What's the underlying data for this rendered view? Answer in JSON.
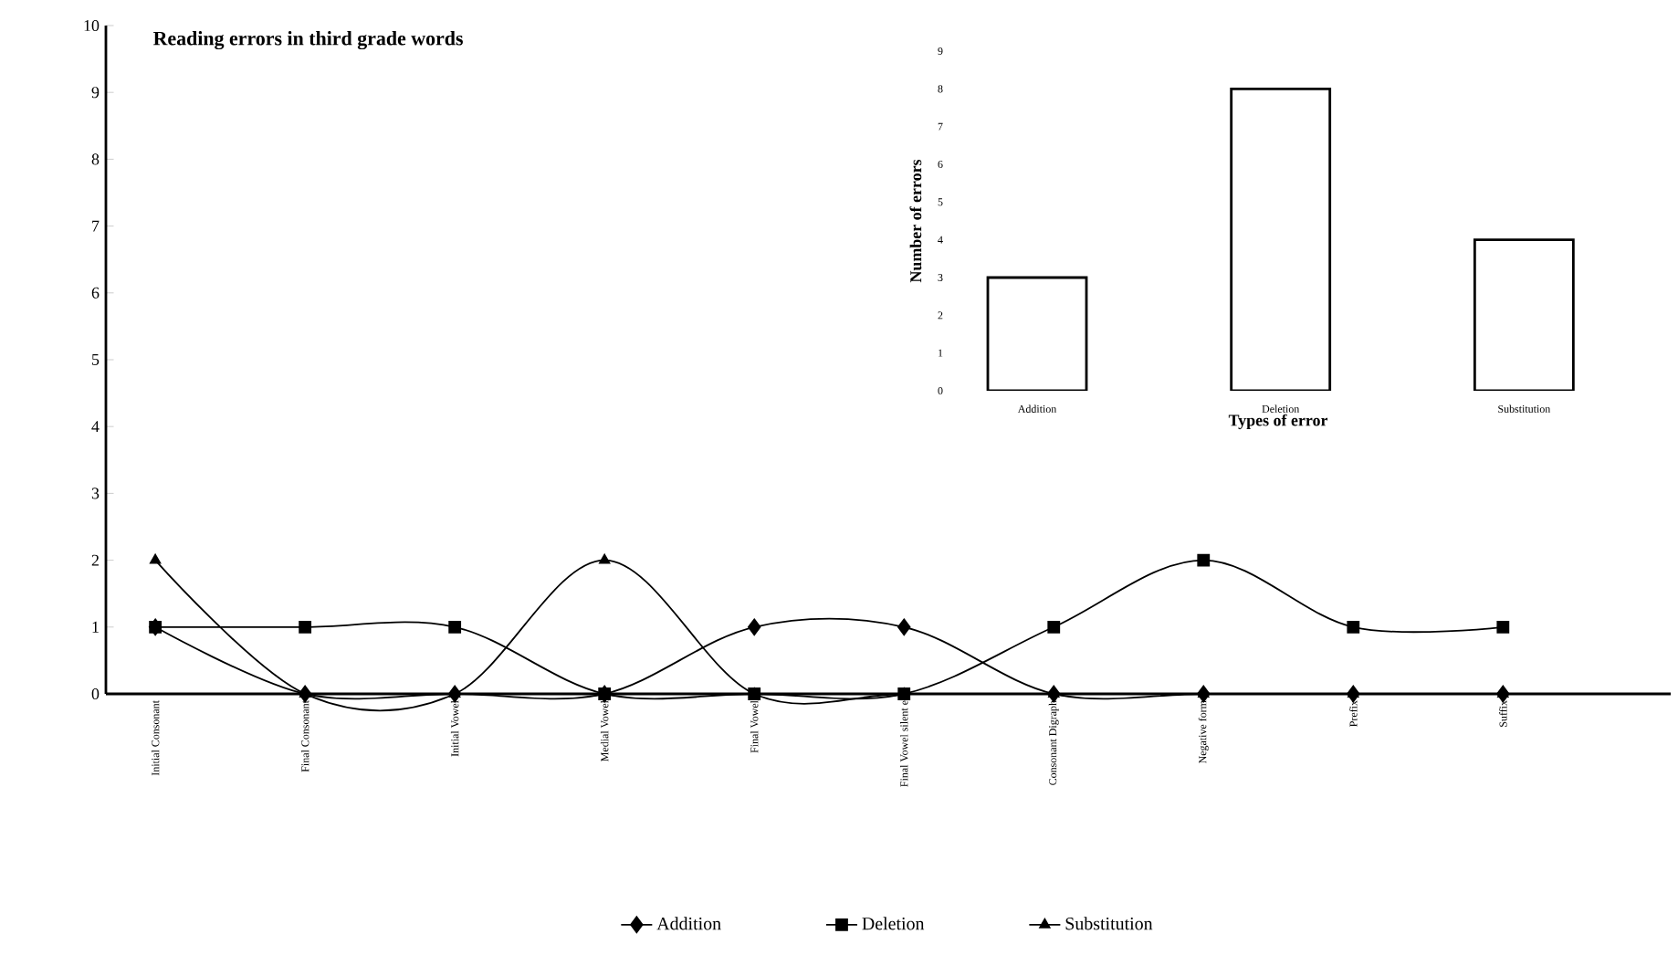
{
  "chart_data": [
    {
      "type": "line",
      "title": "Reading errors in third grade words",
      "categories": [
        "Initial Consonant",
        "Final Consonant",
        "Initial Vowel",
        "Medial Vowel",
        "Final Vowel",
        "Final Vowel silent e",
        "Consonant Digraph",
        "Negative form",
        "Prefix",
        "Suffix"
      ],
      "series": [
        {
          "name": "Addition",
          "color": "#000000",
          "marker": "diamond",
          "values": [
            1,
            0,
            0,
            0,
            1,
            1,
            0,
            0,
            0,
            0
          ]
        },
        {
          "name": "Deletion",
          "color": "#000000",
          "marker": "square",
          "values": [
            1,
            1,
            1,
            0,
            0,
            0,
            1,
            2,
            1,
            1
          ]
        },
        {
          "name": "Substitution",
          "color": "#000000",
          "marker": "triangle",
          "values": [
            2,
            0,
            0,
            2,
            0,
            0,
            0,
            0,
            0,
            0
          ]
        }
      ],
      "ylim": [
        0,
        10
      ],
      "yticks": [
        0,
        1,
        2,
        3,
        4,
        5,
        6,
        7,
        8,
        9,
        10
      ],
      "legend": "bottom"
    },
    {
      "type": "bar",
      "categories": [
        "Addition",
        "Deletion",
        "Substitution"
      ],
      "values": [
        3,
        8,
        4
      ],
      "color": "#ffffff",
      "xlabel": "Types of error",
      "ylabel": "Number of errors",
      "ylim": [
        0,
        9
      ],
      "yticks": [
        0,
        1,
        2,
        3,
        4,
        5,
        6,
        7,
        8,
        9
      ]
    }
  ]
}
